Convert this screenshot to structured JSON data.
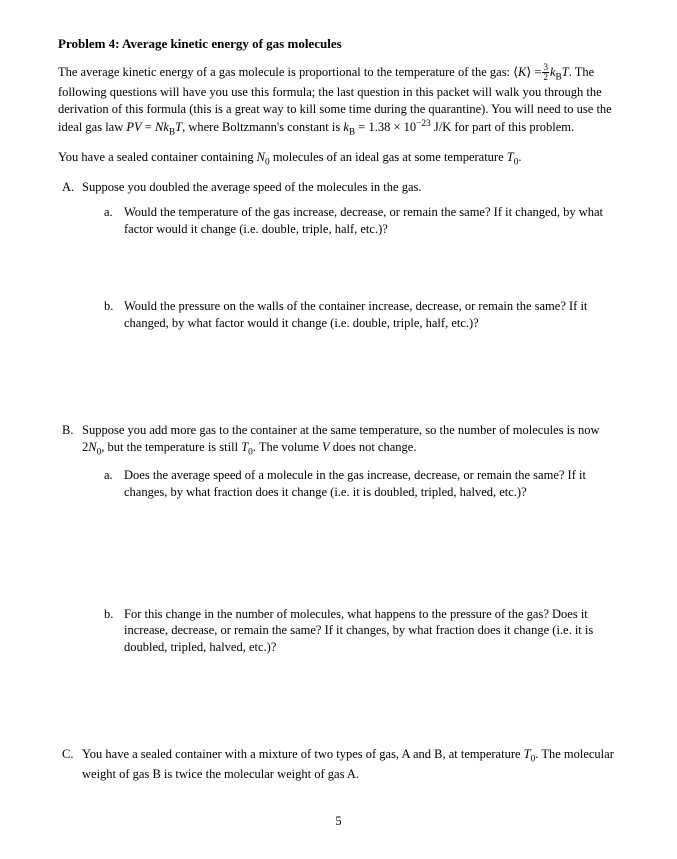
{
  "title": "Problem 4: Average kinetic energy of gas molecules",
  "intro_part1": "The average kinetic energy of a gas molecule is proportional to the temperature of the gas:  ⟨",
  "intro_K": "K",
  "intro_part2": "⟩ =",
  "frac_num": "3",
  "frac_den": "2",
  "intro_kB": "k",
  "intro_B": "B",
  "intro_T": "T",
  "intro_part3": ". The following questions will have you use this formula; the last question in this packet will walk you through the derivation of this formula (this is a great way to kill some time during the quarantine). You will need to use the ideal gas law  ",
  "eq_PV": "PV",
  "eq_eq": " = ",
  "eq_N": "N",
  "eq_k": "k",
  "eq_Bsub": "B",
  "eq_T": "T",
  "intro_part4": ", where Boltzmann's constant is  ",
  "const_k": "k",
  "const_B": "B",
  "const_val": " = 1.38 × 10",
  "const_exp": "−23",
  "const_unit": " J/K for part of this problem.",
  "setup_pre": "You have a sealed container containing  ",
  "setup_N": "N",
  "setup_0": "0",
  "setup_mid": "  molecules of an ideal gas at some temperature  ",
  "setup_T": "T",
  "setup_0b": "0",
  "setup_end": ".",
  "A": {
    "marker": "A.",
    "text": "Suppose you doubled the average speed of the molecules in the gas.",
    "a": {
      "marker": "a.",
      "text": "Would the temperature of the gas increase, decrease, or remain the same?   If it changed, by what factor would it change (i.e. double, triple, half, etc.)?"
    },
    "b": {
      "marker": "b.",
      "text": "Would the pressure on the walls of the container increase, decrease, or remain the same? If it changed, by what factor would it change (i.e. double, triple, half, etc.)?"
    }
  },
  "B": {
    "marker": "B.",
    "pre": "Suppose you add more gas to the container at the same temperature, so the number of molecules is now  2",
    "N": "N",
    "N0": "0",
    "mid": ", but the temperature is still  ",
    "T": "T",
    "T0": "0",
    "post": ".   The volume  ",
    "V": "V",
    "end": "  does not change.",
    "a": {
      "marker": "a.",
      "text": "Does the average speed of a molecule in the gas increase, decrease, or remain the same? If it changes, by what fraction does it change (i.e. it is doubled, tripled, halved, etc.)?"
    },
    "b": {
      "marker": "b.",
      "text": "For this change in the number of molecules, what happens to the pressure of the gas? Does it increase, decrease, or remain the same?   If it changes, by what fraction does it change (i.e. it is doubled, tripled, halved, etc.)?"
    }
  },
  "C": {
    "marker": "C.",
    "pre": "You have a sealed container with a mixture of two types of gas, A and B, at temperature  ",
    "T": "T",
    "T0": "0",
    "post": ". The molecular weight of gas B is twice the molecular weight of gas A."
  },
  "page_number": "5"
}
